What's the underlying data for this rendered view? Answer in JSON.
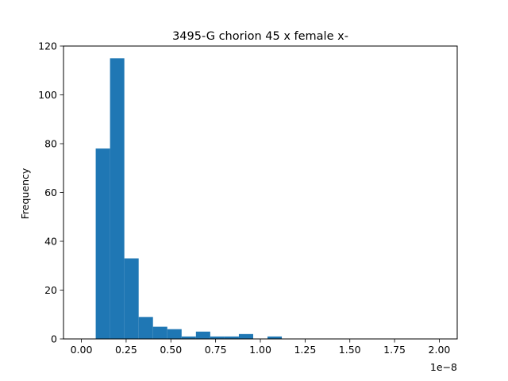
{
  "chart_data": {
    "type": "bar",
    "subtype": "histogram",
    "title": "3495-G chorion 45 x female x-",
    "xlabel": "",
    "ylabel": "Frequency",
    "x_offset_text": "1e−8",
    "x_scale_exponent": -8,
    "xlim": [
      -0.1,
      2.1
    ],
    "ylim": [
      0,
      120
    ],
    "x_ticks": [
      0.0,
      0.25,
      0.5,
      0.75,
      1.0,
      1.25,
      1.5,
      1.75,
      2.0
    ],
    "x_tick_labels": [
      "0.00",
      "0.25",
      "0.50",
      "0.75",
      "1.00",
      "1.25",
      "1.50",
      "1.75",
      "2.00"
    ],
    "y_ticks": [
      0,
      20,
      40,
      60,
      80,
      100,
      120
    ],
    "y_tick_labels": [
      "0",
      "20",
      "40",
      "60",
      "80",
      "100",
      "120"
    ],
    "bins": [
      {
        "x0": 0.08,
        "x1": 0.16,
        "count": 78
      },
      {
        "x0": 0.16,
        "x1": 0.24,
        "count": 115
      },
      {
        "x0": 0.24,
        "x1": 0.32,
        "count": 33
      },
      {
        "x0": 0.32,
        "x1": 0.4,
        "count": 9
      },
      {
        "x0": 0.4,
        "x1": 0.48,
        "count": 5
      },
      {
        "x0": 0.48,
        "x1": 0.56,
        "count": 4
      },
      {
        "x0": 0.56,
        "x1": 0.64,
        "count": 1
      },
      {
        "x0": 0.64,
        "x1": 0.72,
        "count": 3
      },
      {
        "x0": 0.72,
        "x1": 0.8,
        "count": 1
      },
      {
        "x0": 0.8,
        "x1": 0.88,
        "count": 1
      },
      {
        "x0": 0.88,
        "x1": 0.96,
        "count": 2
      },
      {
        "x0": 1.04,
        "x1": 1.12,
        "count": 1
      }
    ],
    "bar_color": "#1f77b4",
    "grid": false,
    "legend": "none"
  }
}
